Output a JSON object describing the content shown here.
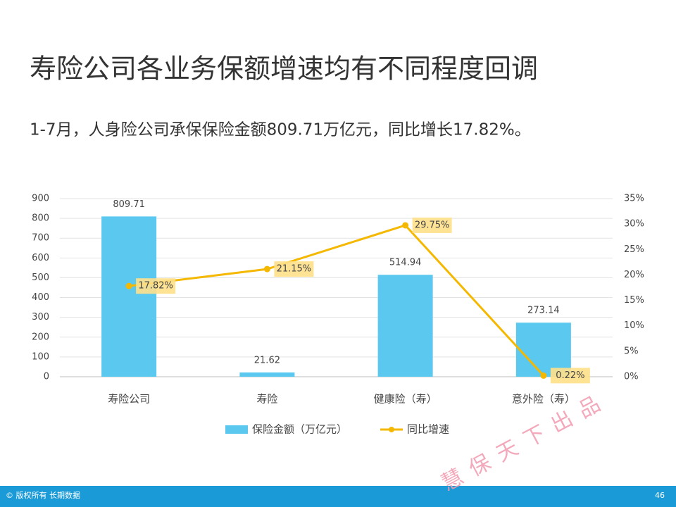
{
  "title": "寿险公司各业务保额增速均有不同程度回调",
  "subtitle": "1-7月，人身险公司承保保险金额809.71万亿元，同比增长17.82%。",
  "chart_data": {
    "type": "bar",
    "categories": [
      "寿险公司",
      "寿险",
      "健康险（寿）",
      "意外险（寿）"
    ],
    "series": [
      {
        "name": "保险金额（万亿元）",
        "type": "bar",
        "color": "#5bc8f0",
        "values": [
          809.71,
          21.62,
          514.94,
          273.14
        ]
      },
      {
        "name": "同比增速",
        "type": "line",
        "axis": "y2",
        "color": "#f5b800",
        "values": [
          17.82,
          21.15,
          29.75,
          0.22
        ],
        "value_labels": [
          "17.82%",
          "21.15%",
          "29.75%",
          "0.22%"
        ]
      }
    ],
    "ylim": [
      0,
      900
    ],
    "yticks": [
      0,
      100,
      200,
      300,
      400,
      500,
      600,
      700,
      800,
      900
    ],
    "y2lim": [
      0,
      35
    ],
    "y2ticks": [
      {
        "value": 0,
        "label": "0%"
      },
      {
        "value": 5,
        "label": "5%"
      },
      {
        "value": 10,
        "label": "10%"
      },
      {
        "value": 15,
        "label": "15%"
      },
      {
        "value": 20,
        "label": "20%"
      },
      {
        "value": 25,
        "label": "25%"
      },
      {
        "value": 30,
        "label": "30%"
      },
      {
        "value": 35,
        "label": "35%"
      }
    ],
    "grid": true,
    "legend": "bottom"
  },
  "watermark": "慧保天下出品",
  "footer": {
    "copyright": "© 版权所有 长期数据",
    "page": "46"
  }
}
